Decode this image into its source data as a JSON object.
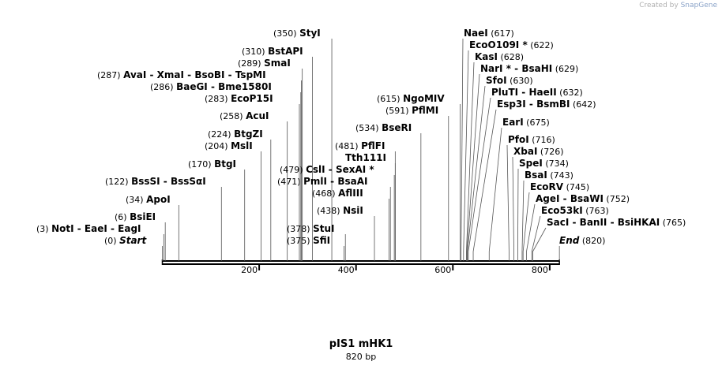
{
  "title": "pIS1 mHK1",
  "subtitle": "820 bp",
  "watermark": {
    "created_by": "Created by",
    "brand": "SnapGene"
  },
  "colors": {
    "line": "#000000",
    "backbone": "#000000",
    "watermark": "#b0b0b0"
  },
  "chart_data": {
    "type": "restriction-map",
    "length": 820,
    "scale_ticks": [
      200,
      400,
      600,
      800
    ],
    "sites": [
      {
        "pos": 350,
        "label": "(350)",
        "names": [
          "StyI"
        ]
      },
      {
        "pos": 310,
        "label": "(310)",
        "names": [
          "BstAPI"
        ]
      },
      {
        "pos": 289,
        "label": "(289)",
        "names": [
          "SmaI"
        ]
      },
      {
        "pos": 287,
        "label": "(287)",
        "names": [
          "AvaI",
          "XmaI",
          "BsoBI",
          "TspMI"
        ]
      },
      {
        "pos": 286,
        "label": "(286)",
        "names": [
          "BaeGI",
          "Bme1580I"
        ]
      },
      {
        "pos": 283,
        "label": "(283)",
        "names": [
          "EcoP15I"
        ]
      },
      {
        "pos": 258,
        "label": "(258)",
        "names": [
          "AcuI"
        ]
      },
      {
        "pos": 224,
        "label": "(224)",
        "names": [
          "BtgZI"
        ]
      },
      {
        "pos": 204,
        "label": "(204)",
        "names": [
          "MslI"
        ]
      },
      {
        "pos": 170,
        "label": "(170)",
        "names": [
          "BtgI"
        ]
      },
      {
        "pos": 122,
        "label": "(122)",
        "names": [
          "BssSI",
          "BssSαI"
        ]
      },
      {
        "pos": 34,
        "label": "(34)",
        "names": [
          "ApoI"
        ]
      },
      {
        "pos": 6,
        "label": "(6)",
        "names": [
          "BsiEI"
        ]
      },
      {
        "pos": 3,
        "label": "(3)",
        "names": [
          "NotI",
          "EaeI",
          "EagI"
        ]
      },
      {
        "pos": 0,
        "label": "(0)",
        "names": [
          "Start"
        ],
        "italic": true
      },
      {
        "pos": 479,
        "label": "(479)",
        "names": [
          "CslI",
          "SexAI *"
        ]
      },
      {
        "pos": 471,
        "label": "(471)",
        "names": [
          "PmlI",
          "BsaAI"
        ]
      },
      {
        "pos": 468,
        "label": "(468)",
        "names": [
          "AflIII"
        ]
      },
      {
        "pos": 438,
        "label": "(438)",
        "names": [
          "NsiI"
        ]
      },
      {
        "pos": 378,
        "label": "(378)",
        "names": [
          "StuI"
        ]
      },
      {
        "pos": 375,
        "label": "(375)",
        "names": [
          "SfiI"
        ]
      },
      {
        "pos": 615,
        "label": "(615)",
        "names": [
          "NgoMIV"
        ]
      },
      {
        "pos": 591,
        "label": "(591)",
        "names": [
          "PflMI"
        ]
      },
      {
        "pos": 534,
        "label": "(534)",
        "names": [
          "BseRI"
        ]
      },
      {
        "pos": 481,
        "label": "(481)",
        "names": [
          "PflFI"
        ]
      },
      {
        "pos": 481,
        "label": "",
        "names": [
          "Tth111I"
        ]
      },
      {
        "pos": 617,
        "label": "(617)",
        "names": [
          "NaeI"
        ]
      },
      {
        "pos": 622,
        "label": "(622)",
        "names": [
          "EcoO109I *"
        ]
      },
      {
        "pos": 628,
        "label": "(628)",
        "names": [
          "KasI"
        ]
      },
      {
        "pos": 629,
        "label": "(629)",
        "names": [
          "NarI *",
          "BsaHI"
        ]
      },
      {
        "pos": 630,
        "label": "(630)",
        "names": [
          "SfoI"
        ]
      },
      {
        "pos": 632,
        "label": "(632)",
        "names": [
          "PluTI",
          "HaeII"
        ]
      },
      {
        "pos": 642,
        "label": "(642)",
        "names": [
          "Esp3I",
          "BsmBI"
        ]
      },
      {
        "pos": 675,
        "label": "(675)",
        "names": [
          "EarI"
        ]
      },
      {
        "pos": 716,
        "label": "(716)",
        "names": [
          "PfoI"
        ]
      },
      {
        "pos": 726,
        "label": "(726)",
        "names": [
          "XbaI"
        ]
      },
      {
        "pos": 734,
        "label": "(734)",
        "names": [
          "SpeI"
        ]
      },
      {
        "pos": 743,
        "label": "(743)",
        "names": [
          "BsaI"
        ]
      },
      {
        "pos": 745,
        "label": "(745)",
        "names": [
          "EcoRV"
        ]
      },
      {
        "pos": 752,
        "label": "(752)",
        "names": [
          "AgeI",
          "BsaWI"
        ]
      },
      {
        "pos": 763,
        "label": "(763)",
        "names": [
          "Eco53kI"
        ]
      },
      {
        "pos": 765,
        "label": "(765)",
        "names": [
          "SacI",
          "BanII",
          "BsiHKAI"
        ]
      },
      {
        "pos": 820,
        "label": "(820)",
        "names": [
          "End"
        ],
        "italic": true
      }
    ]
  }
}
